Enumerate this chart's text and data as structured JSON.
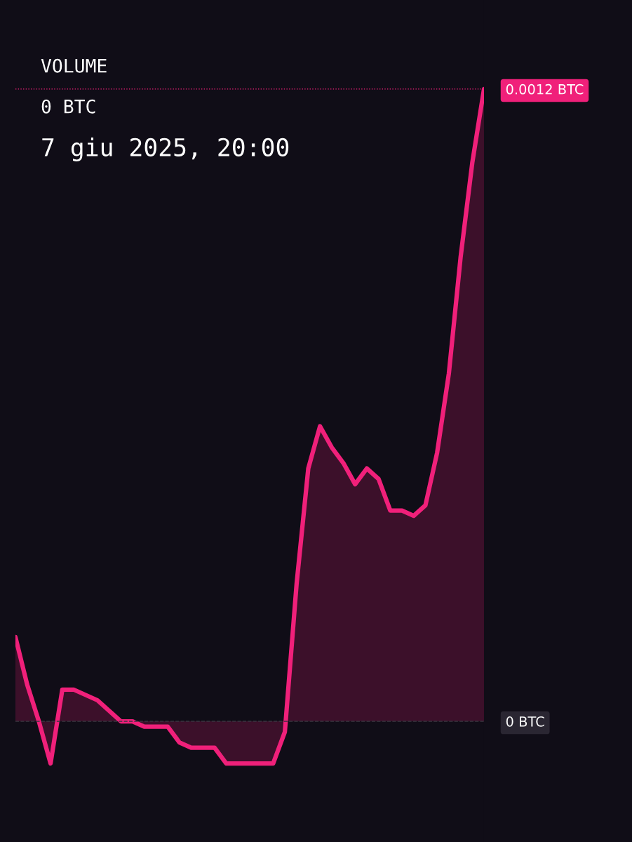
{
  "chart_data": {
    "type": "area",
    "title": "VOLUME",
    "annotations": [
      "0 BTC",
      "7 giu 2025, 20:00"
    ],
    "categories": [
      null,
      null,
      null,
      null,
      null,
      null,
      null,
      null,
      null,
      null,
      null,
      null,
      null,
      null,
      null,
      null,
      null,
      null,
      null,
      null,
      null,
      null,
      null,
      null,
      null,
      null,
      null,
      null,
      null,
      null,
      null,
      null,
      null,
      null,
      null,
      null,
      null,
      null,
      null,
      null,
      null
    ],
    "series": [
      {
        "color": "#f0207a",
        "values": [
          0.00016,
          7e-05,
          0.0,
          -8e-05,
          6e-05,
          6e-05,
          5e-05,
          4e-05,
          2e-05,
          0.0,
          0.0,
          -1e-05,
          -1e-05,
          -1e-05,
          -4e-05,
          -5e-05,
          -5e-05,
          -5e-05,
          -8e-05,
          -8e-05,
          -8e-05,
          -8e-05,
          -8e-05,
          -2e-05,
          0.00026,
          0.00048,
          0.00056,
          0.00052,
          0.00049,
          0.00045,
          0.00048,
          0.00046,
          0.0004,
          0.0004,
          0.00039,
          0.00041,
          0.00051,
          0.00066,
          0.00088,
          0.00106,
          0.0012
        ]
      }
    ],
    "ylim": [
      -0.000229,
      0.001369
    ],
    "yticks": [
      {
        "value": 0.0012,
        "label": "0.0012 BTC"
      },
      {
        "value": 0,
        "label": "0 BTC"
      }
    ],
    "ref_lines": [
      {
        "axis": "y",
        "value": 0.0012,
        "color": "#f0207a",
        "line_style": "dotted"
      },
      {
        "axis": "y",
        "value": 0,
        "color": "#3a3540",
        "line_style": "dashed"
      }
    ],
    "grid": false,
    "legend": false,
    "marker": "none",
    "line_style": "solid"
  }
}
